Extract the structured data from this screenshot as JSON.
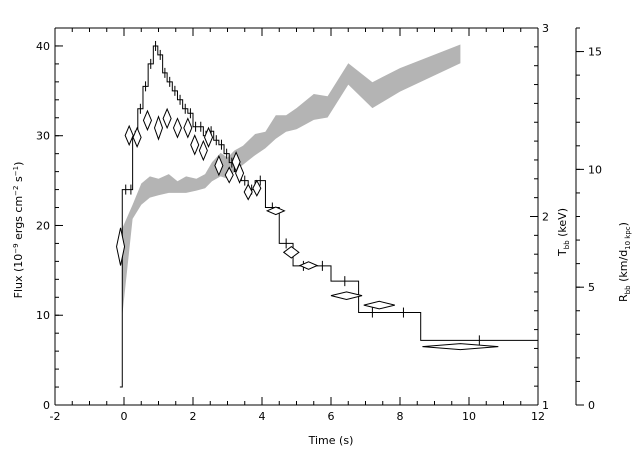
{
  "chart_data": {
    "type": "line",
    "x_axis": {
      "label": "Time (s)",
      "range": [
        -2,
        12
      ],
      "ticks": [
        -2,
        0,
        2,
        4,
        6,
        8,
        10,
        12
      ]
    },
    "y_axis_left": {
      "label": {
        "main": "Flux (10",
        "exp1": "−9",
        "mid": " ergs cm",
        "exp2": "−2",
        "mid2": " s",
        "exp3": "−1",
        "end": ")"
      },
      "range": [
        0,
        42
      ],
      "ticks": [
        0,
        10,
        20,
        30,
        40
      ]
    },
    "y_axis_right_temp": {
      "label": {
        "main": "T",
        "sub": "bb",
        "end": " (keV)"
      },
      "range": [
        1,
        3
      ],
      "ticks": [
        1,
        2,
        3
      ]
    },
    "y_axis_right_radius": {
      "label": {
        "main": "R",
        "sub": "bb",
        "mid": " (km/d",
        "sub2": "10 kpc",
        "end": ")"
      },
      "range": [
        0,
        16
      ],
      "ticks": [
        0,
        5,
        10,
        15
      ]
    },
    "series": [
      {
        "type": "step",
        "axis": "flux",
        "points": [
          [
            -0.12,
            2.0
          ],
          [
            -0.05,
            24.0
          ],
          [
            0.15,
            24.0
          ],
          [
            0.25,
            30.0
          ],
          [
            0.4,
            33.0
          ],
          [
            0.55,
            35.5
          ],
          [
            0.7,
            38.0
          ],
          [
            0.85,
            40.0
          ],
          [
            0.98,
            39.0
          ],
          [
            1.12,
            37.0
          ],
          [
            1.25,
            36.0
          ],
          [
            1.4,
            35.0
          ],
          [
            1.55,
            34.0
          ],
          [
            1.7,
            33.0
          ],
          [
            1.85,
            32.5
          ],
          [
            2.0,
            31.0
          ],
          [
            2.15,
            31.0
          ],
          [
            2.3,
            30.0
          ],
          [
            2.45,
            30.5
          ],
          [
            2.6,
            29.5
          ],
          [
            2.75,
            29.0
          ],
          [
            2.9,
            28.0
          ],
          [
            3.05,
            27.0
          ],
          [
            3.2,
            26.0
          ],
          [
            3.4,
            25.0
          ],
          [
            3.6,
            24.0
          ],
          [
            3.8,
            25.0
          ],
          [
            4.1,
            22.0
          ],
          [
            4.5,
            18.0
          ],
          [
            4.9,
            15.5
          ],
          [
            5.5,
            15.5
          ],
          [
            6.0,
            13.8
          ],
          [
            6.8,
            10.3
          ],
          [
            7.6,
            10.3
          ],
          [
            8.6,
            7.2
          ],
          [
            12.0,
            7.2
          ]
        ]
      },
      {
        "type": "diamond",
        "axis": "temperature",
        "points": [
          {
            "x": -0.1,
            "y": 1.84,
            "xerr": 0.08,
            "yerr": 0.1
          },
          {
            "x": 0.15,
            "y": 2.43,
            "xerr": 0.09,
            "yerr": 0.05
          },
          {
            "x": 0.38,
            "y": 2.42,
            "xerr": 0.09,
            "yerr": 0.05
          },
          {
            "x": 0.68,
            "y": 2.51,
            "xerr": 0.11,
            "yerr": 0.05
          },
          {
            "x": 1.0,
            "y": 2.47,
            "xerr": 0.11,
            "yerr": 0.06
          },
          {
            "x": 1.25,
            "y": 2.52,
            "xerr": 0.11,
            "yerr": 0.05
          },
          {
            "x": 1.55,
            "y": 2.47,
            "xerr": 0.11,
            "yerr": 0.05
          },
          {
            "x": 1.85,
            "y": 2.47,
            "xerr": 0.11,
            "yerr": 0.05
          },
          {
            "x": 2.05,
            "y": 2.38,
            "xerr": 0.1,
            "yerr": 0.05
          },
          {
            "x": 2.3,
            "y": 2.35,
            "xerr": 0.1,
            "yerr": 0.05
          },
          {
            "x": 2.45,
            "y": 2.42,
            "xerr": 0.1,
            "yerr": 0.05
          },
          {
            "x": 2.75,
            "y": 2.27,
            "xerr": 0.1,
            "yerr": 0.05
          },
          {
            "x": 3.05,
            "y": 2.22,
            "xerr": 0.11,
            "yerr": 0.04
          },
          {
            "x": 3.25,
            "y": 2.29,
            "xerr": 0.11,
            "yerr": 0.05
          },
          {
            "x": 3.35,
            "y": 2.23,
            "xerr": 0.11,
            "yerr": 0.05
          },
          {
            "x": 3.6,
            "y": 2.13,
            "xerr": 0.11,
            "yerr": 0.04
          },
          {
            "x": 3.85,
            "y": 2.15,
            "xerr": 0.11,
            "yerr": 0.04
          },
          {
            "x": 4.4,
            "y": 2.03,
            "xerr": 0.25,
            "yerr": 0.02
          },
          {
            "x": 4.85,
            "y": 1.81,
            "xerr": 0.22,
            "yerr": 0.03
          },
          {
            "x": 5.35,
            "y": 1.74,
            "xerr": 0.25,
            "yerr": 0.02
          },
          {
            "x": 6.45,
            "y": 1.58,
            "xerr": 0.45,
            "yerr": 0.02
          },
          {
            "x": 7.4,
            "y": 1.53,
            "xerr": 0.45,
            "yerr": 0.02
          },
          {
            "x": 9.75,
            "y": 1.31,
            "xerr": 1.1,
            "yerr": 0.01
          }
        ]
      },
      {
        "type": "band",
        "axis": "radius",
        "upper": [
          [
            -0.05,
            7.5
          ],
          [
            0.25,
            8.5
          ],
          [
            0.5,
            9.4
          ],
          [
            0.75,
            9.7
          ],
          [
            1.0,
            9.6
          ],
          [
            1.3,
            9.8
          ],
          [
            1.55,
            9.5
          ],
          [
            1.8,
            9.7
          ],
          [
            2.1,
            9.6
          ],
          [
            2.35,
            9.8
          ],
          [
            2.55,
            10.3
          ],
          [
            2.8,
            10.7
          ],
          [
            3.0,
            10.5
          ],
          [
            3.2,
            10.8
          ],
          [
            3.45,
            11.0
          ],
          [
            3.8,
            11.5
          ],
          [
            4.1,
            11.6
          ],
          [
            4.4,
            12.3
          ],
          [
            4.7,
            12.3
          ],
          [
            5.0,
            12.6
          ],
          [
            5.5,
            13.2
          ],
          [
            5.9,
            13.1
          ],
          [
            6.5,
            14.5
          ],
          [
            7.2,
            13.7
          ],
          [
            8.0,
            14.3
          ],
          [
            9.75,
            15.3
          ]
        ],
        "lower": [
          [
            9.75,
            14.5
          ],
          [
            8.0,
            13.3
          ],
          [
            7.2,
            12.6
          ],
          [
            6.5,
            13.6
          ],
          [
            5.9,
            12.2
          ],
          [
            5.5,
            12.1
          ],
          [
            5.0,
            11.7
          ],
          [
            4.7,
            11.6
          ],
          [
            4.4,
            11.3
          ],
          [
            4.1,
            10.9
          ],
          [
            3.8,
            10.6
          ],
          [
            3.45,
            10.2
          ],
          [
            3.2,
            9.9
          ],
          [
            3.0,
            9.6
          ],
          [
            2.8,
            9.7
          ],
          [
            2.55,
            9.5
          ],
          [
            2.35,
            9.2
          ],
          [
            2.1,
            9.1
          ],
          [
            1.8,
            9.0
          ],
          [
            1.55,
            9.0
          ],
          [
            1.3,
            9.0
          ],
          [
            1.0,
            8.9
          ],
          [
            0.75,
            8.8
          ],
          [
            0.5,
            8.5
          ],
          [
            0.25,
            7.9
          ],
          [
            -0.05,
            3.8
          ]
        ]
      }
    ]
  }
}
